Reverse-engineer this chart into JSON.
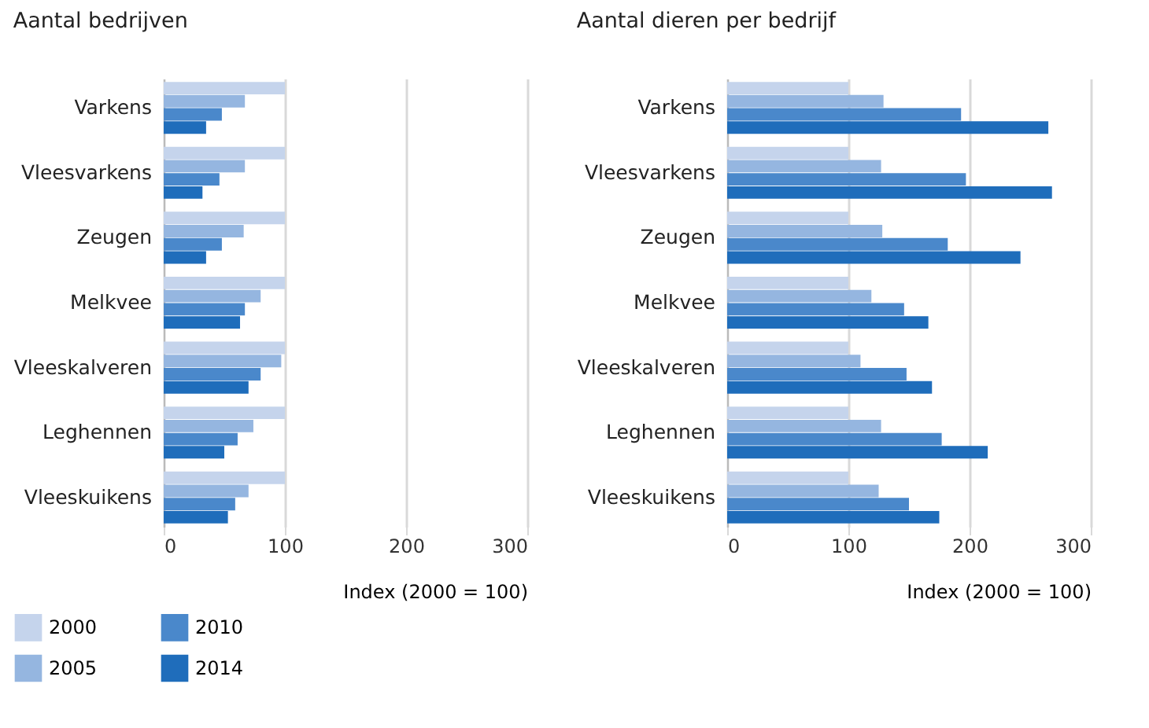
{
  "chart_data": [
    {
      "type": "bar",
      "orientation": "horizontal",
      "title": "Aantal bedrijven",
      "xlabel": "Index (2000 = 100)",
      "categories": [
        "Varkens",
        "Vleesvarkens",
        "Zeugen",
        "Melkvee",
        "Vleeskalveren",
        "Leghennen",
        "Vleeskuikens"
      ],
      "xlim": [
        0,
        300
      ],
      "xticks": [
        0,
        100,
        200,
        300
      ],
      "grid": "x",
      "legend": "bottom left",
      "series": [
        {
          "name": "2000",
          "color": "#c5d4ec",
          "values": [
            100,
            100,
            100,
            100,
            100,
            100,
            100
          ]
        },
        {
          "name": "2005",
          "color": "#95b6e0",
          "values": [
            67,
            67,
            66,
            80,
            97,
            74,
            70
          ]
        },
        {
          "name": "2010",
          "color": "#4a88cb",
          "values": [
            48,
            46,
            48,
            67,
            80,
            61,
            59
          ]
        },
        {
          "name": "2014",
          "color": "#1f6dbb",
          "values": [
            35,
            32,
            35,
            63,
            70,
            50,
            53
          ]
        }
      ]
    },
    {
      "type": "bar",
      "orientation": "horizontal",
      "title": "Aantal dieren per bedrijf",
      "xlabel": "Index (2000 = 100)",
      "categories": [
        "Varkens",
        "Vleesvarkens",
        "Zeugen",
        "Melkvee",
        "Vleeskalveren",
        "Leghennen",
        "Vleeskuikens"
      ],
      "xlim": [
        0,
        300
      ],
      "xticks": [
        0,
        100,
        200,
        300
      ],
      "grid": "x",
      "legend": false,
      "series": [
        {
          "name": "2000",
          "color": "#c5d4ec",
          "values": [
            100,
            100,
            100,
            100,
            100,
            100,
            100
          ]
        },
        {
          "name": "2005",
          "color": "#95b6e0",
          "values": [
            129,
            127,
            128,
            119,
            110,
            127,
            125
          ]
        },
        {
          "name": "2010",
          "color": "#4a88cb",
          "values": [
            193,
            197,
            182,
            146,
            148,
            177,
            150
          ]
        },
        {
          "name": "2014",
          "color": "#1f6dbb",
          "values": [
            265,
            268,
            242,
            166,
            169,
            215,
            175
          ]
        }
      ]
    }
  ]
}
